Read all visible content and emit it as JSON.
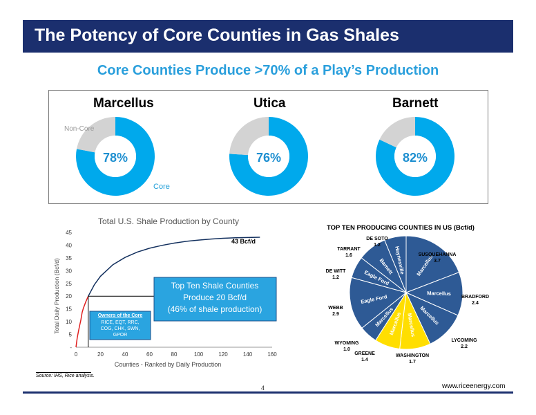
{
  "header": {
    "title": "The Potency of Core Counties in Gas Shales"
  },
  "subtitle": "Core Counties Produce >70% of a Play’s Production",
  "donuts": {
    "legend_noncore": "Non-Core",
    "legend_core": "Core",
    "items": [
      {
        "name": "Marcellus",
        "core_pct_label": "78%",
        "core_fraction": 0.78
      },
      {
        "name": "Utica",
        "core_pct_label": "76%",
        "core_fraction": 0.76
      },
      {
        "name": "Barnett",
        "core_pct_label": "82%",
        "core_fraction": 0.82
      }
    ],
    "colors": {
      "core": "#00a9ec",
      "noncore": "#d3d3d3"
    }
  },
  "chart_data": [
    {
      "type": "line",
      "title": "Total U.S. Shale Production by County",
      "xlabel": "Counties - Ranked by Daily Production",
      "ylabel": "Total Daily Production (Bcf/d)",
      "xlim": [
        0,
        160
      ],
      "ylim": [
        0,
        45
      ],
      "x_ticks": [
        "0",
        "20",
        "40",
        "60",
        "80",
        "100",
        "120",
        "140",
        "160"
      ],
      "y_ticks": [
        "-",
        "5",
        "10",
        "15",
        "20",
        "25",
        "30",
        "35",
        "40",
        "45"
      ],
      "end_label": "43 Bcf/d",
      "x": [
        0,
        1,
        2,
        3,
        4,
        5,
        6,
        8,
        10,
        15,
        20,
        30,
        40,
        50,
        60,
        70,
        80,
        90,
        100,
        110,
        120,
        130,
        140,
        150
      ],
      "y": [
        0,
        3.7,
        6.1,
        8.5,
        10.7,
        13.6,
        15.3,
        17.8,
        20.0,
        24.5,
        27.8,
        32.3,
        35.2,
        37.3,
        38.8,
        39.9,
        40.8,
        41.5,
        42.0,
        42.4,
        42.7,
        42.9,
        43.0,
        43.1
      ],
      "annotations": [
        {
          "text": [
            "Top Ten Shale Counties",
            "Produce 20 Bcf/d",
            "(46% of shale production)"
          ],
          "at_x": 10,
          "at_y": 20
        },
        {
          "title": "Owners of the Core",
          "text": [
            "RICE, EQT, RRC,",
            "COG, CHK, SWN,",
            "GPOR"
          ]
        }
      ]
    },
    {
      "type": "pie",
      "title": "TOP TEN PRODUCING COUNTIES IN US (Bcf/d)",
      "slices": [
        {
          "county": "SUSQUEHANNA",
          "value": 3.7,
          "play": "Marcellus",
          "color": "#2e5a95"
        },
        {
          "county": "BRADFORD",
          "value": 2.4,
          "play": "Marcellus",
          "color": "#2e5a95"
        },
        {
          "county": "LYCOMING",
          "value": 2.2,
          "play": "Marcellus",
          "color": "#2e5a95"
        },
        {
          "county": "WASHINGTON",
          "value": 1.7,
          "play": "Marcellus",
          "color": "#ffde00"
        },
        {
          "county": "GREENE",
          "value": 1.4,
          "play": "Marcellus",
          "color": "#ffde00"
        },
        {
          "county": "WYOMING",
          "value": 1.0,
          "play": "Marcellus",
          "color": "#2e5a95"
        },
        {
          "county": "WEBB",
          "value": 2.9,
          "play": "Eagle Ford",
          "color": "#2e5a95"
        },
        {
          "county": "DE WITT",
          "value": 1.2,
          "play": "Eagle Ford",
          "color": "#2e5a95"
        },
        {
          "county": "TARRANT",
          "value": 1.6,
          "play": "Barnett",
          "color": "#2e5a95"
        },
        {
          "county": "DE SOTO",
          "value": 1.2,
          "play": "Haynesville",
          "color": "#2e5a95"
        }
      ]
    }
  ],
  "footer": {
    "source": "Source: IHS, Rice analysis.",
    "page": "4",
    "url": "www.riceenergy.com"
  }
}
